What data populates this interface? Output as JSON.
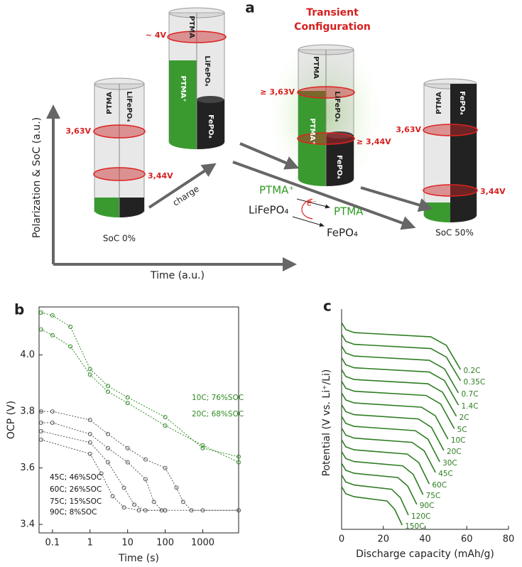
{
  "diagram": {
    "panel_label": "a",
    "transient_label": [
      "Transient",
      "Configuration"
    ],
    "cylinders": [
      {
        "labels": [
          "PTMA",
          "LiFePO₄"
        ],
        "voltages": [
          "3,63V",
          "3,44V"
        ],
        "caption": "SoC 0%"
      },
      {
        "labels": [
          "PTMA",
          "LiFePO₄",
          "PTMA⁺",
          "FePO₄"
        ],
        "voltages": [
          "~ 4V"
        ]
      },
      {
        "labels": [
          "PTMA",
          "LiFePO₄",
          "PTMA⁺",
          "FePO₄"
        ],
        "voltages": [
          "≥ 3,63V",
          "≥ 3,44V"
        ]
      },
      {
        "labels": [
          "PTMA",
          "FePO₄"
        ],
        "voltages": [
          "3,63V",
          "3,44V"
        ],
        "caption": "SoC 50%"
      }
    ],
    "arrow_label": "charge",
    "reaction": {
      "oxidant": "PTMA⁺",
      "reduced": "PTMA",
      "donor": "LiFePO₄",
      "product": "FePO₄",
      "electron": "e⁻"
    },
    "y_axis_label": "Polarization & SoC (a.u.)",
    "x_axis_label": "Time (a.u.)"
  },
  "chart_data": [
    {
      "type": "line",
      "panel_label": "b",
      "xlabel": "Time (s)",
      "ylabel": "OCP (V)",
      "xscale": "log",
      "xlim": [
        0.044,
        9000
      ],
      "xticks": [
        0.1,
        1,
        10,
        100,
        1000
      ],
      "ylim": [
        3.37,
        4.17
      ],
      "yticks": [
        3.4,
        3.6,
        3.8,
        {
          "value": 4,
          "label": "4.0"
        }
      ],
      "marker": "circle",
      "series": [
        {
          "name": "10C; 76%SOC",
          "color": "#2f8a22",
          "x": [
            0.05,
            0.1,
            0.3,
            1,
            3,
            10,
            100,
            1000,
            9000
          ],
          "values": [
            4.15,
            4.14,
            4.1,
            3.95,
            3.89,
            3.85,
            3.78,
            3.67,
            3.64
          ]
        },
        {
          "name": "20C; 68%SOC",
          "color": "#2f8a22",
          "x": [
            0.05,
            0.1,
            0.3,
            1,
            3,
            10,
            100,
            1000,
            9000
          ],
          "values": [
            4.09,
            4.07,
            4.03,
            3.93,
            3.87,
            3.83,
            3.75,
            3.68,
            3.62
          ]
        },
        {
          "name": "45C; 46%SOC",
          "color": "#555555",
          "x": [
            0.05,
            0.1,
            1,
            3,
            10,
            30,
            100,
            200,
            300,
            500,
            1000,
            9000
          ],
          "values": [
            3.8,
            3.8,
            3.77,
            3.72,
            3.67,
            3.63,
            3.6,
            3.53,
            3.48,
            3.45,
            3.45,
            3.45
          ]
        },
        {
          "name": "60C; 26%SOC",
          "color": "#555555",
          "x": [
            0.05,
            0.1,
            1,
            3,
            10,
            30,
            50,
            80,
            9000
          ],
          "values": [
            3.76,
            3.76,
            3.72,
            3.67,
            3.62,
            3.56,
            3.48,
            3.45,
            3.45
          ]
        },
        {
          "name": "75C; 15%SOC",
          "color": "#555555",
          "x": [
            0.05,
            1,
            3,
            8,
            15,
            30,
            100
          ],
          "values": [
            3.73,
            3.69,
            3.62,
            3.53,
            3.47,
            3.45,
            3.45
          ]
        },
        {
          "name": "90C;  8%SOC",
          "color": "#555555",
          "x": [
            0.05,
            1,
            2,
            4,
            8,
            20,
            100
          ],
          "values": [
            3.7,
            3.65,
            3.58,
            3.5,
            3.46,
            3.45,
            3.45
          ]
        }
      ]
    },
    {
      "type": "line",
      "panel_label": "c",
      "xlabel": "Discharge capacity (mAh/g)",
      "ylabel": "Potential (V vs. Li⁺/Li)",
      "xlim": [
        0,
        80
      ],
      "xticks": [
        0,
        20,
        40,
        60,
        80
      ],
      "ylim": [
        0,
        100
      ],
      "series": [
        {
          "name": "0.2C",
          "color": "#2e7d22",
          "x": [
            0,
            2,
            6,
            42.8,
            50.2,
            57
          ],
          "values": [
            97,
            93.7,
            92.3,
            90.3,
            86.3,
            75
          ]
        },
        {
          "name": "0.35C",
          "color": "#2e7d22",
          "x": [
            0,
            2,
            6,
            42.8,
            50.2,
            57
          ],
          "values": [
            91.5,
            88.2,
            86.8,
            84.8,
            80.8,
            69.7
          ]
        },
        {
          "name": "0.7C",
          "color": "#2e7d22",
          "x": [
            0,
            2,
            6,
            42,
            49.3,
            56
          ],
          "values": [
            86,
            82.7,
            81.3,
            79.3,
            75.3,
            64
          ]
        },
        {
          "name": "1.4C",
          "color": "#2e7d22",
          "x": [
            0,
            2,
            6,
            42,
            49.3,
            56
          ],
          "values": [
            80.5,
            77.2,
            75.8,
            73.8,
            69.8,
            58.3
          ]
        },
        {
          "name": "2C",
          "color": "#2e7d22",
          "x": [
            0,
            2,
            6,
            41.3,
            48.4,
            55
          ],
          "values": [
            75,
            71.7,
            70.3,
            68.3,
            64.3,
            53
          ]
        },
        {
          "name": "5C",
          "color": "#2e7d22",
          "x": [
            0,
            2,
            6,
            40.5,
            47.5,
            54
          ],
          "values": [
            69.5,
            66.2,
            64.8,
            62.8,
            58.8,
            47.3
          ]
        },
        {
          "name": "10C",
          "color": "#2e7d22",
          "x": [
            0,
            2,
            6,
            38.3,
            44.9,
            51
          ],
          "values": [
            64,
            60.7,
            59.3,
            57.3,
            53.3,
            42.3
          ]
        },
        {
          "name": "20C",
          "color": "#2e7d22",
          "x": [
            0,
            2,
            6,
            36.8,
            43.1,
            49
          ],
          "values": [
            58.5,
            55.2,
            53.8,
            51.8,
            47.8,
            37
          ]
        },
        {
          "name": "30C",
          "color": "#2e7d22",
          "x": [
            0,
            2,
            6,
            35.3,
            41.4,
            47
          ],
          "values": [
            53,
            49.7,
            48.3,
            46.3,
            42.3,
            31.7
          ]
        },
        {
          "name": "45C",
          "color": "#2e7d22",
          "x": [
            0,
            2,
            6,
            33.8,
            39.6,
            45
          ],
          "values": [
            47.5,
            44.2,
            42.8,
            40.8,
            36.8,
            26.7
          ]
        },
        {
          "name": "60C",
          "color": "#2e7d22",
          "x": [
            0,
            2,
            6,
            31.5,
            37,
            42
          ],
          "values": [
            42,
            38.7,
            37.3,
            35.3,
            31.3,
            21.3
          ]
        },
        {
          "name": "75C",
          "color": "#2e7d22",
          "x": [
            0,
            2,
            6,
            29.3,
            34.3,
            39
          ],
          "values": [
            36.5,
            33.2,
            31.8,
            29.8,
            25.8,
            16.3
          ]
        },
        {
          "name": "90C",
          "color": "#2e7d22",
          "x": [
            0,
            2,
            6,
            27,
            31.7,
            36
          ],
          "values": [
            31,
            27.7,
            26.3,
            24.3,
            20.3,
            11.7
          ]
        },
        {
          "name": "120C",
          "color": "#2e7d22",
          "x": [
            0,
            2,
            6,
            24,
            28.2,
            32
          ],
          "values": [
            25.5,
            22.2,
            20.8,
            18.8,
            14.8,
            6.7
          ]
        },
        {
          "name": "150C",
          "color": "#2e7d22",
          "x": [
            0,
            2,
            6,
            21.8,
            25.5,
            29
          ],
          "values": [
            20,
            16.7,
            15.3,
            13.3,
            9.3,
            2
          ]
        }
      ]
    }
  ]
}
